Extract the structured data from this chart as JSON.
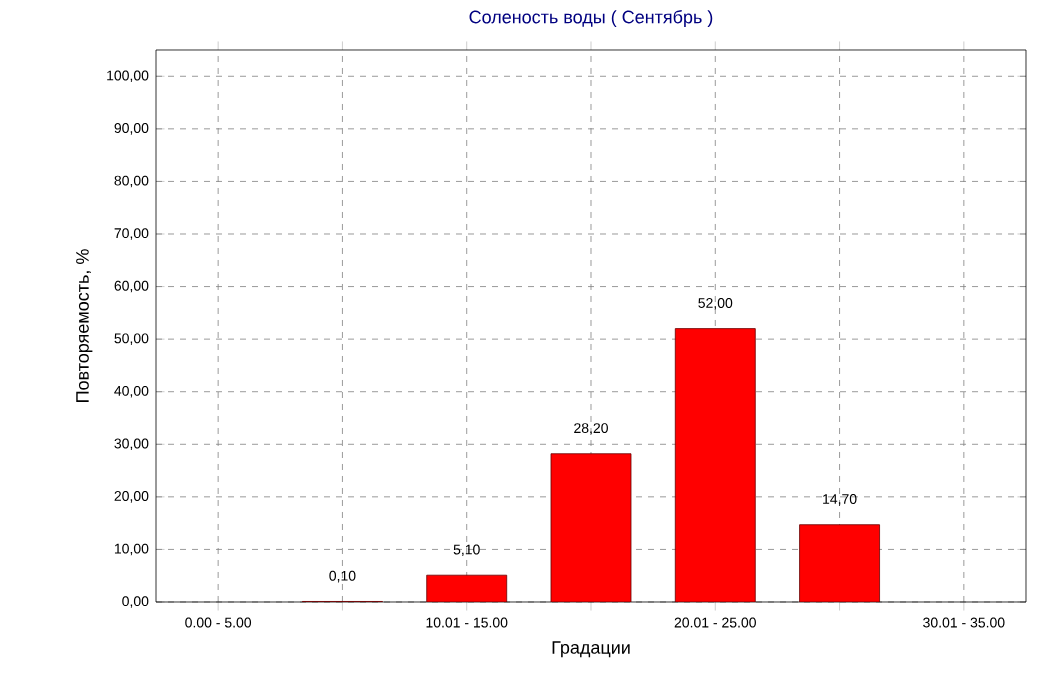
{
  "chart_data": {
    "type": "bar",
    "title": "Соленость воды    ( Сентябрь )",
    "xlabel": "Градации",
    "ylabel": "Повторяемость, %",
    "categories": [
      "0.00 - 5.00",
      null,
      "10.01 - 15.00",
      null,
      "20.01 - 25.00",
      null,
      "30.01 - 35.00"
    ],
    "values": [
      null,
      0.1,
      5.1,
      28.2,
      52.0,
      14.7,
      null
    ],
    "value_labels": [
      null,
      "0,10",
      "5,10",
      "28,20",
      "52,00",
      "14,70",
      null
    ],
    "color": "#ff0000",
    "ylim": [
      0,
      105
    ],
    "yticks": [
      {
        "value": 0,
        "label": "0,00"
      },
      {
        "value": 10,
        "label": "10,00"
      },
      {
        "value": 20,
        "label": "20,00"
      },
      {
        "value": 30,
        "label": "30,00"
      },
      {
        "value": 40,
        "label": "40,00"
      },
      {
        "value": 50,
        "label": "50,00"
      },
      {
        "value": 60,
        "label": "60,00"
      },
      {
        "value": 70,
        "label": "70,00"
      },
      {
        "value": 80,
        "label": "80,00"
      },
      {
        "value": 90,
        "label": "90,00"
      },
      {
        "value": 100,
        "label": "100,00"
      }
    ],
    "grid": true
  }
}
